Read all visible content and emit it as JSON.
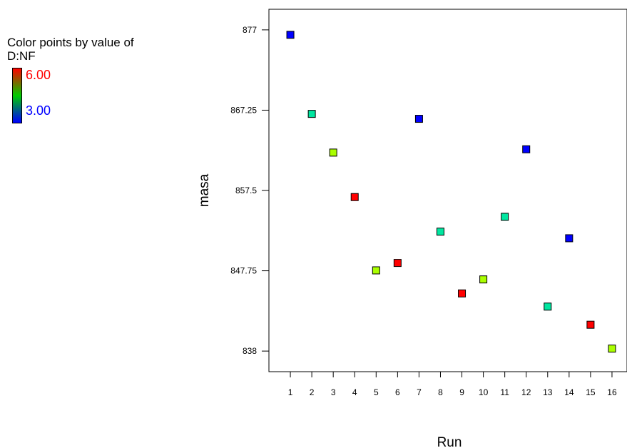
{
  "legend": {
    "title_line1": "Color points by value of",
    "title_line2": "D:NF",
    "max_label": "6.00",
    "min_label": "3.00",
    "max_color": "#ff0000",
    "min_color": "#0000ff"
  },
  "chart_data": {
    "type": "scatter",
    "xlabel": "Run",
    "ylabel": "masa",
    "x_ticks": [
      "1",
      "2",
      "3",
      "4",
      "5",
      "6",
      "7",
      "8",
      "9",
      "10",
      "11",
      "12",
      "13",
      "14",
      "15",
      "16"
    ],
    "y_ticks": [
      "838",
      "847.75",
      "857.5",
      "867.25",
      "877"
    ],
    "xlim": [
      0,
      16.7
    ],
    "ylim": [
      835.5,
      879.5
    ],
    "grid": false,
    "color_variable": "D:NF",
    "color_range": [
      3.0,
      6.0
    ],
    "points": [
      {
        "run": 1,
        "masa": 876.4,
        "nf": 3.0,
        "color": "#0000ff"
      },
      {
        "run": 2,
        "masa": 866.8,
        "nf": 4.0,
        "color": "#00e6a0"
      },
      {
        "run": 3,
        "masa": 862.1,
        "nf": 5.0,
        "color": "#aaff00"
      },
      {
        "run": 4,
        "masa": 856.7,
        "nf": 6.0,
        "color": "#ff0000"
      },
      {
        "run": 5,
        "masa": 847.8,
        "nf": 5.0,
        "color": "#aaff00"
      },
      {
        "run": 6,
        "masa": 848.7,
        "nf": 6.0,
        "color": "#ff0000"
      },
      {
        "run": 7,
        "masa": 866.2,
        "nf": 3.0,
        "color": "#0000ff"
      },
      {
        "run": 8,
        "masa": 852.5,
        "nf": 4.0,
        "color": "#00e6a0"
      },
      {
        "run": 9,
        "masa": 845.0,
        "nf": 6.0,
        "color": "#ff0000"
      },
      {
        "run": 10,
        "masa": 846.7,
        "nf": 5.0,
        "color": "#aaff00"
      },
      {
        "run": 11,
        "masa": 854.3,
        "nf": 4.0,
        "color": "#00e6a0"
      },
      {
        "run": 12,
        "masa": 862.5,
        "nf": 3.0,
        "color": "#0000ff"
      },
      {
        "run": 13,
        "masa": 843.4,
        "nf": 4.0,
        "color": "#00e6a0"
      },
      {
        "run": 14,
        "masa": 851.7,
        "nf": 3.0,
        "color": "#0000ff"
      },
      {
        "run": 15,
        "masa": 841.2,
        "nf": 6.0,
        "color": "#ff0000"
      },
      {
        "run": 16,
        "masa": 838.3,
        "nf": 5.0,
        "color": "#aaff00"
      }
    ]
  }
}
